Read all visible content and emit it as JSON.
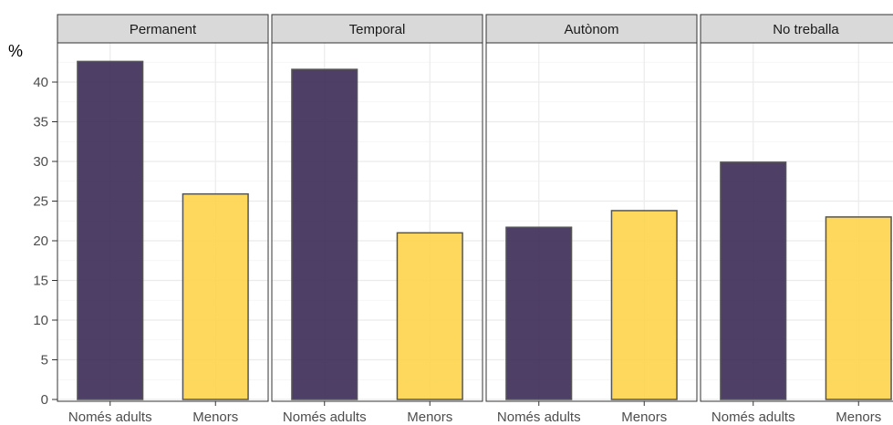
{
  "chart_data": {
    "type": "bar",
    "ylabel": "%",
    "ylim": [
      0,
      45
    ],
    "yticks": [
      0,
      5,
      10,
      15,
      20,
      25,
      30,
      35,
      40
    ],
    "grid": true,
    "categories": [
      "Només adults",
      "Menors"
    ],
    "colors": {
      "Només adults": "#3b2a55",
      "Menors": "#fdd44a"
    },
    "panels": [
      {
        "label": "Permanent",
        "values": [
          42.6,
          25.9
        ]
      },
      {
        "label": "Temporal",
        "values": [
          41.6,
          21.0
        ]
      },
      {
        "label": "Autònom",
        "values": [
          21.7,
          23.8
        ]
      },
      {
        "label": "No treballa",
        "values": [
          29.9,
          23.0
        ]
      }
    ]
  }
}
